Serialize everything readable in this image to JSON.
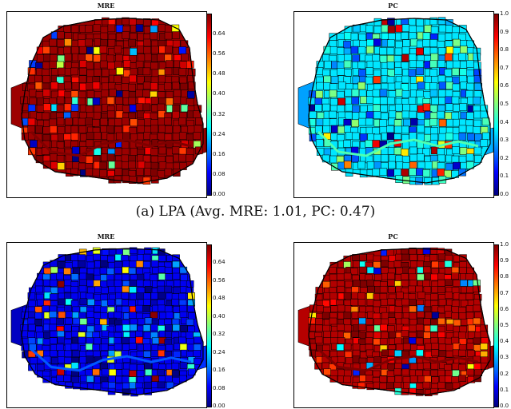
{
  "captions": {
    "a": "(a) LPA (Avg. MRE: 1.01, PC: 0.47)"
  },
  "palette": {
    "jet": [
      "#00007f",
      "#0000ff",
      "#0080ff",
      "#00ffff",
      "#80ff80",
      "#ffff00",
      "#ff8000",
      "#ff0000",
      "#7f0000"
    ]
  },
  "chart_data": [
    {
      "type": "heatmap",
      "title": "MRE",
      "description_visible": "choropleth map of city districts",
      "colorbar": {
        "ticks": [
          "0.00",
          "0.08",
          "0.16",
          "0.24",
          "0.32",
          "0.40",
          "0.48",
          "0.56",
          "0.64"
        ],
        "range": [
          0,
          0.72
        ]
      },
      "dominant_value": 0.7
    },
    {
      "type": "heatmap",
      "title": "PC",
      "colorbar": {
        "ticks": [
          "0.0",
          "0.1",
          "0.2",
          "0.3",
          "0.4",
          "0.5",
          "0.6",
          "0.7",
          "0.8",
          "0.9",
          "1.0"
        ],
        "range": [
          0,
          1.0
        ]
      },
      "dominant_value": 0.35
    },
    {
      "type": "heatmap",
      "title": "MRE",
      "colorbar": {
        "ticks": [
          "0.00",
          "0.08",
          "0.16",
          "0.24",
          "0.32",
          "0.40",
          "0.48",
          "0.56",
          "0.64"
        ],
        "range": [
          0,
          0.72
        ]
      },
      "dominant_value": 0.08
    },
    {
      "type": "heatmap",
      "title": "PC",
      "colorbar": {
        "ticks": [
          "0.0",
          "0.1",
          "0.2",
          "0.3",
          "0.4",
          "0.5",
          "0.6",
          "0.7",
          "0.8",
          "0.9",
          "1.0"
        ],
        "range": [
          0,
          1.0
        ]
      },
      "dominant_value": 0.95
    }
  ]
}
